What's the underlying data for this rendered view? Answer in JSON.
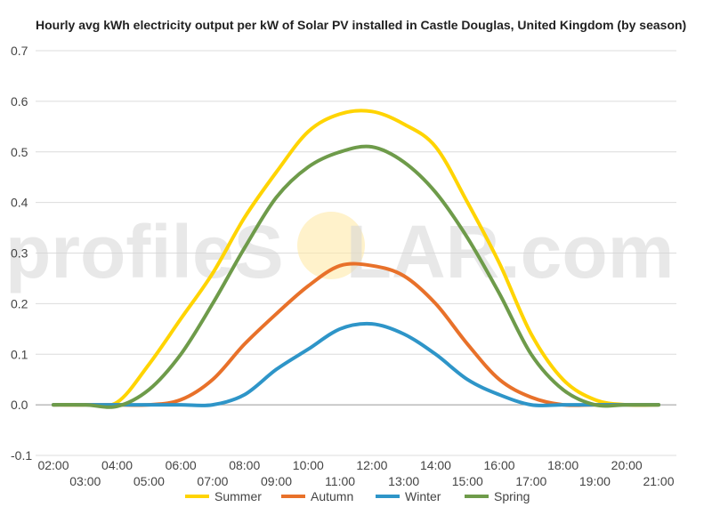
{
  "watermark": {
    "prefix": "profileS",
    "suffix": "LAR.com"
  },
  "chart_data": {
    "type": "line",
    "title": "Hourly avg kWh electricity output per kW of Solar PV installed in Castle Douglas, United Kingdom (by season)",
    "xlabel": "",
    "ylabel": "",
    "x": [
      "02:00",
      "03:00",
      "04:00",
      "05:00",
      "06:00",
      "07:00",
      "08:00",
      "09:00",
      "10:00",
      "11:00",
      "12:00",
      "13:00",
      "14:00",
      "15:00",
      "16:00",
      "17:00",
      "18:00",
      "19:00",
      "20:00",
      "21:00"
    ],
    "x_upper_labels": [
      "02:00",
      "04:00",
      "06:00",
      "08:00",
      "10:00",
      "12:00",
      "14:00",
      "16:00",
      "18:00",
      "20:00"
    ],
    "x_lower_labels": [
      "03:00",
      "05:00",
      "07:00",
      "09:00",
      "11:00",
      "13:00",
      "15:00",
      "17:00",
      "19:00",
      "21:00"
    ],
    "ylim": [
      -0.1,
      0.7
    ],
    "yticks": [
      "-0.1",
      "0.0",
      "0.1",
      "0.2",
      "0.3",
      "0.4",
      "0.5",
      "0.6",
      "0.7"
    ],
    "grid": true,
    "legend_position": "bottom",
    "series": [
      {
        "name": "Summer",
        "color": "#FFD400",
        "values": [
          0,
          0,
          0.005,
          0.08,
          0.17,
          0.26,
          0.37,
          0.46,
          0.54,
          0.575,
          0.58,
          0.555,
          0.51,
          0.4,
          0.28,
          0.14,
          0.05,
          0.01,
          0,
          0
        ]
      },
      {
        "name": "Autumn",
        "color": "#E8712A",
        "values": [
          0,
          0,
          0,
          0,
          0.01,
          0.05,
          0.12,
          0.18,
          0.235,
          0.275,
          0.275,
          0.255,
          0.2,
          0.12,
          0.05,
          0.015,
          0,
          0,
          0,
          0
        ]
      },
      {
        "name": "Winter",
        "color": "#2E95C8",
        "values": [
          0,
          0,
          0,
          0,
          0,
          0,
          0.02,
          0.07,
          0.11,
          0.15,
          0.16,
          0.14,
          0.1,
          0.05,
          0.02,
          0,
          0,
          0,
          0,
          0
        ]
      },
      {
        "name": "Spring",
        "color": "#6E9B4A",
        "values": [
          0,
          0,
          -0.003,
          0.03,
          0.1,
          0.2,
          0.31,
          0.41,
          0.47,
          0.5,
          0.51,
          0.48,
          0.42,
          0.33,
          0.22,
          0.1,
          0.03,
          0,
          0,
          0
        ]
      }
    ]
  }
}
